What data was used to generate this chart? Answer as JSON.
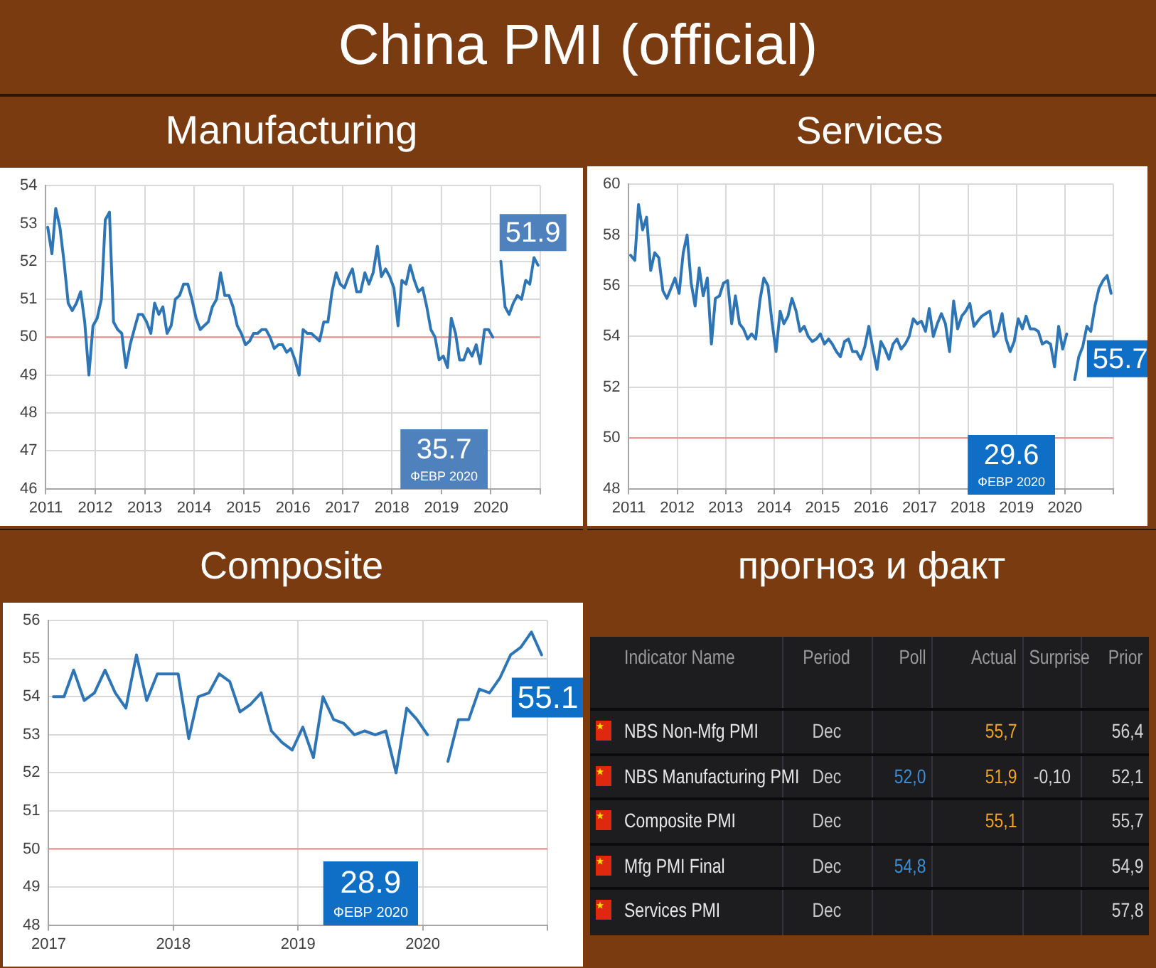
{
  "chart_data": [
    {
      "type": "other",
      "title": "China PMI (official)"
    },
    {
      "type": "line",
      "title": "Manufacturing",
      "x": [
        "2011-01-15",
        "2011-02-15",
        "2011-03-15",
        "2011-04-15",
        "2011-05-15",
        "2011-06-15",
        "2011-07-15",
        "2011-08-15",
        "2011-09-15",
        "2011-10-15",
        "2011-11-15",
        "2011-12-15",
        "2012-01-15",
        "2012-02-15",
        "2012-03-15",
        "2012-04-15",
        "2012-05-15",
        "2012-06-15",
        "2012-07-15",
        "2012-08-15",
        "2012-09-15",
        "2012-10-15",
        "2012-11-15",
        "2012-12-15",
        "2013-01-15",
        "2013-02-15",
        "2013-03-15",
        "2013-04-15",
        "2013-05-15",
        "2013-06-15",
        "2013-07-15",
        "2013-08-15",
        "2013-09-15",
        "2013-10-15",
        "2013-11-15",
        "2013-12-15",
        "2014-01-15",
        "2014-02-15",
        "2014-03-15",
        "2014-04-15",
        "2014-05-15",
        "2014-06-15",
        "2014-07-15",
        "2014-08-15",
        "2014-09-15",
        "2014-10-15",
        "2014-11-15",
        "2014-12-15",
        "2015-01-15",
        "2015-02-15",
        "2015-03-15",
        "2015-04-15",
        "2015-05-15",
        "2015-06-15",
        "2015-07-15",
        "2015-08-15",
        "2015-09-15",
        "2015-10-15",
        "2015-11-15",
        "2015-12-15",
        "2016-01-15",
        "2016-02-15",
        "2016-03-15",
        "2016-04-15",
        "2016-05-15",
        "2016-06-15",
        "2016-07-15",
        "2016-08-15",
        "2016-09-15",
        "2016-10-15",
        "2016-11-15",
        "2016-12-15",
        "2017-01-15",
        "2017-02-15",
        "2017-03-15",
        "2017-04-15",
        "2017-05-15",
        "2017-06-15",
        "2017-07-15",
        "2017-08-15",
        "2017-09-15",
        "2017-10-15",
        "2017-11-15",
        "2017-12-15",
        "2018-01-15",
        "2018-02-15",
        "2018-03-15",
        "2018-04-15",
        "2018-05-15",
        "2018-06-15",
        "2018-07-15",
        "2018-08-15",
        "2018-09-15",
        "2018-10-15",
        "2018-11-15",
        "2018-12-15",
        "2019-01-15",
        "2019-02-15",
        "2019-03-15",
        "2019-04-15",
        "2019-05-15",
        "2019-06-15",
        "2019-07-15",
        "2019-08-15",
        "2019-09-15",
        "2019-10-15",
        "2019-11-15",
        "2019-12-15",
        "2020-01-15",
        "2020-02-15",
        "2020-03-15",
        "2020-04-15",
        "2020-05-15",
        "2020-06-15",
        "2020-07-15",
        "2020-08-15",
        "2020-09-15",
        "2020-10-15",
        "2020-11-15",
        "2020-12-15"
      ],
      "series": [
        {
          "color": "#2e75b6",
          "values": [
            52.9,
            52.2,
            53.4,
            52.9,
            52.0,
            50.9,
            50.7,
            50.9,
            51.2,
            50.4,
            49.0,
            50.3,
            50.5,
            51.0,
            53.1,
            53.3,
            50.4,
            50.2,
            50.1,
            49.2,
            49.8,
            50.2,
            50.6,
            50.6,
            50.4,
            50.1,
            50.9,
            50.6,
            50.8,
            50.1,
            50.3,
            51.0,
            51.1,
            51.4,
            51.4,
            51.0,
            50.5,
            50.2,
            50.3,
            50.4,
            50.8,
            51.0,
            51.7,
            51.1,
            51.1,
            50.8,
            50.3,
            50.1,
            49.8,
            49.9,
            50.1,
            50.1,
            50.2,
            50.2,
            50.0,
            49.7,
            49.8,
            49.8,
            49.6,
            49.7,
            49.4,
            49.0,
            50.2,
            50.1,
            50.1,
            50.0,
            49.9,
            50.4,
            50.4,
            51.2,
            51.7,
            51.4,
            51.3,
            51.6,
            51.8,
            51.2,
            51.2,
            51.7,
            51.4,
            51.7,
            52.4,
            51.6,
            51.8,
            51.6,
            51.3,
            50.3,
            51.5,
            51.4,
            51.9,
            51.5,
            51.2,
            51.3,
            50.8,
            50.2,
            50.0,
            49.4,
            49.5,
            49.2,
            50.5,
            50.1,
            49.4,
            49.4,
            49.7,
            49.5,
            49.8,
            49.3,
            50.2,
            50.2,
            50.0,
            null,
            52.0,
            50.8,
            50.6,
            50.9,
            51.1,
            51.0,
            51.5,
            51.4,
            52.1,
            51.9
          ]
        }
      ],
      "xlim": [
        "2011",
        "2021"
      ],
      "xticks": [
        "2011",
        "2012",
        "2013",
        "2014",
        "2015",
        "2016",
        "2017",
        "2018",
        "2019",
        "2020",
        {
          "value": "2021",
          "label": null
        }
      ],
      "ylim": [
        46,
        54
      ],
      "yticks": [
        46,
        47,
        48,
        49,
        50,
        51,
        52,
        53,
        54
      ],
      "grid": true,
      "marker": "none",
      "ref_lines": [
        {
          "axis": "y",
          "value": 50,
          "color": "#ee8a8a"
        }
      ],
      "annotations": [
        {
          "text": "51.9",
          "x": "2020-12-15",
          "y": 51.9
        },
        "35.7",
        "ФЕВР 2020"
      ]
    },
    {
      "type": "line",
      "title": "Services",
      "x": [
        "2011-01-15",
        "2011-02-15",
        "2011-03-15",
        "2011-04-15",
        "2011-05-15",
        "2011-06-15",
        "2011-07-15",
        "2011-08-15",
        "2011-09-15",
        "2011-10-15",
        "2011-11-15",
        "2011-12-15",
        "2012-01-15",
        "2012-02-15",
        "2012-03-15",
        "2012-04-15",
        "2012-05-15",
        "2012-06-15",
        "2012-07-15",
        "2012-08-15",
        "2012-09-15",
        "2012-10-15",
        "2012-11-15",
        "2012-12-15",
        "2013-01-15",
        "2013-02-15",
        "2013-03-15",
        "2013-04-15",
        "2013-05-15",
        "2013-06-15",
        "2013-07-15",
        "2013-08-15",
        "2013-09-15",
        "2013-10-15",
        "2013-11-15",
        "2013-12-15",
        "2014-01-15",
        "2014-02-15",
        "2014-03-15",
        "2014-04-15",
        "2014-05-15",
        "2014-06-15",
        "2014-07-15",
        "2014-08-15",
        "2014-09-15",
        "2014-10-15",
        "2014-11-15",
        "2014-12-15",
        "2015-01-15",
        "2015-02-15",
        "2015-03-15",
        "2015-04-15",
        "2015-05-15",
        "2015-06-15",
        "2015-07-15",
        "2015-08-15",
        "2015-09-15",
        "2015-10-15",
        "2015-11-15",
        "2015-12-15",
        "2016-01-15",
        "2016-02-15",
        "2016-03-15",
        "2016-04-15",
        "2016-05-15",
        "2016-06-15",
        "2016-07-15",
        "2016-08-15",
        "2016-09-15",
        "2016-10-15",
        "2016-11-15",
        "2016-12-15",
        "2017-01-15",
        "2017-02-15",
        "2017-03-15",
        "2017-04-15",
        "2017-05-15",
        "2017-06-15",
        "2017-07-15",
        "2017-08-15",
        "2017-09-15",
        "2017-10-15",
        "2017-11-15",
        "2017-12-15",
        "2018-01-15",
        "2018-02-15",
        "2018-03-15",
        "2018-04-15",
        "2018-05-15",
        "2018-06-15",
        "2018-07-15",
        "2018-08-15",
        "2018-09-15",
        "2018-10-15",
        "2018-11-15",
        "2018-12-15",
        "2019-01-15",
        "2019-02-15",
        "2019-03-15",
        "2019-04-15",
        "2019-05-15",
        "2019-06-15",
        "2019-07-15",
        "2019-08-15",
        "2019-09-15",
        "2019-10-15",
        "2019-11-15",
        "2019-12-15",
        "2020-01-15",
        "2020-02-15",
        "2020-03-15",
        "2020-04-15",
        "2020-05-15",
        "2020-06-15",
        "2020-07-15",
        "2020-08-15",
        "2020-09-15",
        "2020-10-15",
        "2020-11-15",
        "2020-12-15"
      ],
      "series": [
        {
          "color": "#2e75b6",
          "values": [
            57.2,
            57.0,
            59.2,
            58.2,
            58.7,
            56.6,
            57.3,
            57.1,
            55.8,
            55.5,
            55.9,
            56.3,
            55.7,
            57.3,
            58.0,
            56.1,
            55.2,
            56.7,
            55.6,
            56.3,
            53.7,
            55.5,
            55.6,
            56.1,
            56.2,
            54.5,
            55.6,
            54.5,
            54.3,
            53.9,
            54.1,
            53.9,
            55.4,
            56.3,
            56.0,
            54.6,
            53.4,
            55.0,
            54.5,
            54.8,
            55.5,
            55.0,
            54.2,
            54.4,
            54.0,
            53.8,
            53.9,
            54.1,
            53.7,
            53.9,
            53.7,
            53.4,
            53.2,
            53.8,
            53.9,
            53.4,
            53.4,
            53.1,
            53.6,
            54.4,
            53.5,
            52.7,
            53.8,
            53.5,
            53.1,
            53.7,
            53.9,
            53.5,
            53.7,
            54.0,
            54.7,
            54.5,
            54.6,
            54.2,
            55.1,
            54.0,
            54.5,
            54.9,
            54.5,
            53.4,
            55.4,
            54.3,
            54.8,
            55.0,
            55.3,
            54.4,
            54.6,
            54.8,
            54.9,
            55.0,
            54.0,
            54.2,
            54.9,
            53.9,
            53.4,
            53.8,
            54.7,
            54.3,
            54.8,
            54.3,
            54.3,
            54.2,
            53.7,
            53.8,
            53.7,
            52.8,
            54.4,
            53.5,
            54.1,
            null,
            52.3,
            53.2,
            53.6,
            54.4,
            54.2,
            55.2,
            55.9,
            56.2,
            56.4,
            55.7
          ]
        }
      ],
      "xlim": [
        "2011",
        "2021"
      ],
      "xticks": [
        "2011",
        "2012",
        "2013",
        "2014",
        "2015",
        "2016",
        "2017",
        "2018",
        "2019",
        "2020",
        {
          "value": "2021",
          "label": null
        }
      ],
      "ylim": [
        48,
        60
      ],
      "yticks": [
        48,
        50,
        52,
        54,
        56,
        58,
        60
      ],
      "grid": true,
      "marker": "none",
      "ref_lines": [
        {
          "axis": "y",
          "value": 50,
          "color": "#ee8a8a"
        }
      ],
      "annotations": [
        {
          "text": "55.7",
          "x": "2020-12-15",
          "y": 55.7
        },
        "29.6",
        "ФЕВР 2020"
      ]
    },
    {
      "type": "line",
      "title": "Composite",
      "x": [
        "2017-01-15",
        "2017-02-15",
        "2017-03-15",
        "2017-04-15",
        "2017-05-15",
        "2017-06-15",
        "2017-07-15",
        "2017-08-15",
        "2017-09-15",
        "2017-10-15",
        "2017-11-15",
        "2017-12-15",
        "2018-01-15",
        "2018-02-15",
        "2018-03-15",
        "2018-04-15",
        "2018-05-15",
        "2018-06-15",
        "2018-07-15",
        "2018-08-15",
        "2018-09-15",
        "2018-10-15",
        "2018-11-15",
        "2018-12-15",
        "2019-01-15",
        "2019-02-15",
        "2019-03-15",
        "2019-04-15",
        "2019-05-15",
        "2019-06-15",
        "2019-07-15",
        "2019-08-15",
        "2019-09-15",
        "2019-10-15",
        "2019-11-15",
        "2019-12-15",
        "2020-01-15",
        "2020-02-15",
        "2020-03-15",
        "2020-04-15",
        "2020-05-15",
        "2020-06-15",
        "2020-07-15",
        "2020-08-15",
        "2020-09-15",
        "2020-10-15",
        "2020-11-15",
        "2020-12-15"
      ],
      "series": [
        {
          "color": "#2e75b6",
          "values": [
            54.0,
            54.0,
            54.7,
            53.9,
            54.1,
            54.7,
            54.1,
            53.7,
            55.1,
            53.9,
            54.6,
            54.6,
            54.6,
            52.9,
            54.0,
            54.1,
            54.6,
            54.4,
            53.6,
            53.8,
            54.1,
            53.1,
            52.8,
            52.6,
            53.2,
            52.4,
            54.0,
            53.4,
            53.3,
            53.0,
            53.1,
            53.0,
            53.1,
            52.0,
            53.7,
            53.4,
            53.0,
            null,
            52.3,
            53.4,
            53.4,
            54.2,
            54.1,
            54.5,
            55.1,
            55.3,
            55.7,
            55.1
          ]
        }
      ],
      "xlim": [
        "2017",
        "2021"
      ],
      "xticks": [
        "2017",
        "2018",
        "2019",
        "2020",
        {
          "value": "2021",
          "label": null
        }
      ],
      "ylim": [
        48,
        56
      ],
      "yticks": [
        48,
        49,
        50,
        51,
        52,
        53,
        54,
        55,
        56
      ],
      "grid": true,
      "marker": "none",
      "ref_lines": [
        {
          "axis": "y",
          "value": 50,
          "color": "#ee8a8a"
        }
      ],
      "annotations": [
        {
          "text": "55.1",
          "x": "2020-12-15",
          "y": 55.1
        },
        "28.9",
        "ФЕВР 2020"
      ]
    },
    {
      "type": "other",
      "title": "прогноз и факт",
      "ylabel": "Indicator Name",
      "categories": [
        "NBS Non-Mfg PMI",
        "NBS Manufacturing PMI",
        "Composite PMI",
        "Mfg PMI Final",
        "Services PMI"
      ],
      "series": [
        {
          "name": "Period",
          "values": [
            null,
            null,
            null,
            null,
            null
          ],
          "value_labels": [
            "Dec",
            "Dec",
            "Dec",
            "Dec",
            "Dec"
          ]
        },
        {
          "name": "Poll",
          "values": [
            null,
            52.0,
            null,
            54.8,
            null
          ],
          "value_labels": [
            null,
            "52,0",
            null,
            "54,8",
            null
          ]
        },
        {
          "name": "Actual",
          "values": [
            55.7,
            51.9,
            55.1,
            null,
            null
          ],
          "value_labels": [
            "55,7",
            "51,9",
            "55,1",
            null,
            null
          ]
        },
        {
          "name": "Surprise",
          "values": [
            null,
            -0.1,
            null,
            null,
            null
          ],
          "value_labels": [
            null,
            "-0,10",
            null,
            null,
            null
          ]
        },
        {
          "name": "Prior",
          "values": [
            56.4,
            52.1,
            55.7,
            54.9,
            57.8
          ],
          "value_labels": [
            "56,4",
            "52,1",
            "55,7",
            "54,9",
            "57,8"
          ]
        }
      ]
    }
  ]
}
